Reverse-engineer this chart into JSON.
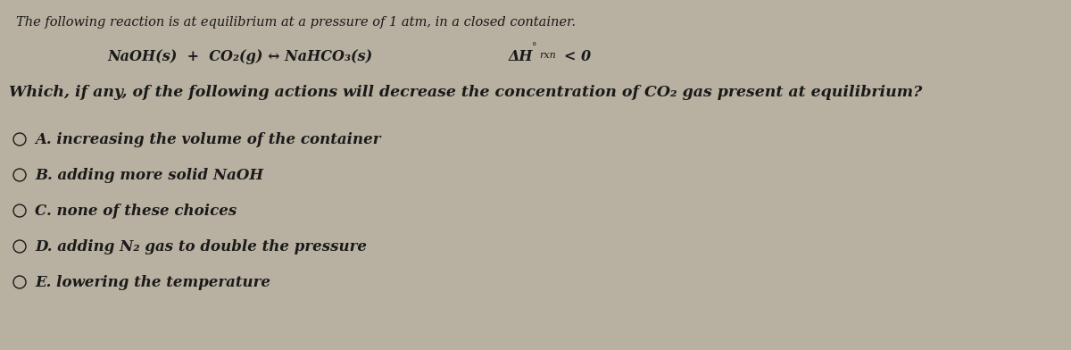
{
  "background_color": "#b8b0a0",
  "text_color": "#1a1a1a",
  "title_line": "The following reaction is at equilibrium at a pressure of 1 atm, in a closed container.",
  "reaction_left": "NaOH(s)  +  CO₂(g) ↔ NaHCO₃(s)",
  "dh_main": "ΔH",
  "dh_degree": "°",
  "dh_rxn": "rxn",
  "dh_lt": "< 0",
  "question_line": "Which, if any, of the following actions will decrease the concentration of CO₂ gas present at equilibrium?",
  "options": [
    "A. increasing the volume of the container",
    "B. adding more solid NaOH",
    "C. none of these choices",
    "D. adding N₂ gas to double the pressure",
    "E. lowering the temperature"
  ],
  "title_fontsize": 10.5,
  "reaction_fontsize": 11.5,
  "question_fontsize": 12.5,
  "option_fontsize": 12.0,
  "font_family": "DejaVu Serif"
}
